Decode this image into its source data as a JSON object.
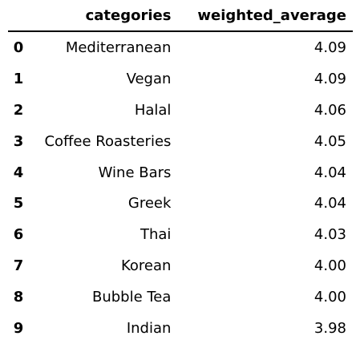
{
  "table": {
    "columns": [
      "",
      "categories",
      "weighted_average"
    ],
    "rows": [
      {
        "index": "0",
        "category": "Mediterranean",
        "weighted_average": "4.09"
      },
      {
        "index": "1",
        "category": "Vegan",
        "weighted_average": "4.09"
      },
      {
        "index": "2",
        "category": "Halal",
        "weighted_average": "4.06"
      },
      {
        "index": "3",
        "category": "Coffee Roasteries",
        "weighted_average": "4.05"
      },
      {
        "index": "4",
        "category": "Wine Bars",
        "weighted_average": "4.04"
      },
      {
        "index": "5",
        "category": "Greek",
        "weighted_average": "4.04"
      },
      {
        "index": "6",
        "category": "Thai",
        "weighted_average": "4.03"
      },
      {
        "index": "7",
        "category": "Korean",
        "weighted_average": "4.00"
      },
      {
        "index": "8",
        "category": "Bubble Tea",
        "weighted_average": "4.00"
      },
      {
        "index": "9",
        "category": "Indian",
        "weighted_average": "3.98"
      }
    ]
  },
  "chart_data": {
    "type": "table",
    "columns": [
      "categories",
      "weighted_average"
    ],
    "index": [
      0,
      1,
      2,
      3,
      4,
      5,
      6,
      7,
      8,
      9
    ],
    "categories": [
      "Mediterranean",
      "Vegan",
      "Halal",
      "Coffee Roasteries",
      "Wine Bars",
      "Greek",
      "Thai",
      "Korean",
      "Bubble Tea",
      "Indian"
    ],
    "weighted_average": [
      4.09,
      4.09,
      4.06,
      4.05,
      4.04,
      4.04,
      4.03,
      4.0,
      4.0,
      3.98
    ]
  }
}
